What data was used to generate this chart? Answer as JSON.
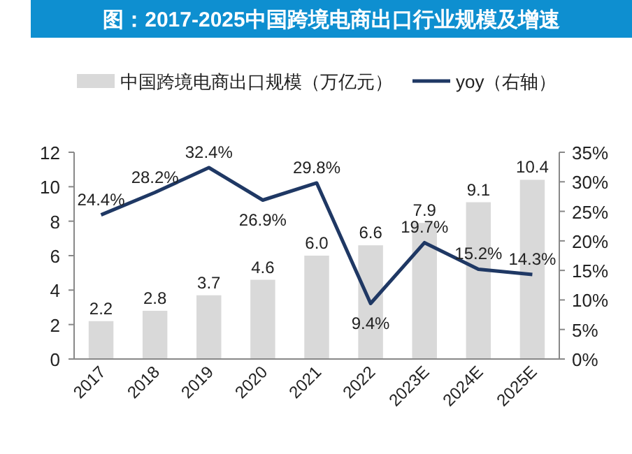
{
  "chart_data": {
    "type": "bar",
    "title": "图：2017-2025中国跨境电商出口行业规模及增速",
    "categories": [
      "2017",
      "2018",
      "2019",
      "2020",
      "2021",
      "2022",
      "2023E",
      "2024E",
      "2025E"
    ],
    "series": [
      {
        "name": "中国跨境电商出口规模（万亿元）",
        "color": "#d9d9d9",
        "values": [
          2.2,
          2.8,
          3.7,
          4.6,
          6.0,
          6.6,
          7.9,
          9.1,
          10.4
        ],
        "value_labels": [
          "2.2",
          "2.8",
          "3.7",
          "4.6",
          "6.0",
          "6.6",
          "7.9",
          "9.1",
          "10.4"
        ]
      },
      {
        "name": "yoy（右轴）",
        "type": "line",
        "axis": "y2",
        "color": "#1f3864",
        "values": [
          24.4,
          28.2,
          32.4,
          26.9,
          29.8,
          9.4,
          19.7,
          15.2,
          14.3
        ],
        "value_labels": [
          "24.4%",
          "28.2%",
          "32.4%",
          "26.9%",
          "29.8%",
          "9.4%",
          "19.7%",
          "15.2%",
          "14.3%"
        ]
      }
    ],
    "ylim": [
      0,
      12
    ],
    "yticks": [
      0,
      2,
      4,
      6,
      8,
      10,
      12
    ],
    "y2lim": [
      0,
      35
    ],
    "y2ticks": [
      {
        "value": 0,
        "label": "0%"
      },
      {
        "value": 5,
        "label": "5%"
      },
      {
        "value": 10,
        "label": "10%"
      },
      {
        "value": 15,
        "label": "15%"
      },
      {
        "value": 20,
        "label": "20%"
      },
      {
        "value": 25,
        "label": "25%"
      },
      {
        "value": 30,
        "label": "30%"
      },
      {
        "value": 35,
        "label": "35%"
      }
    ],
    "grid": false,
    "legend": "top",
    "marker": "none",
    "line_style": "solid"
  }
}
